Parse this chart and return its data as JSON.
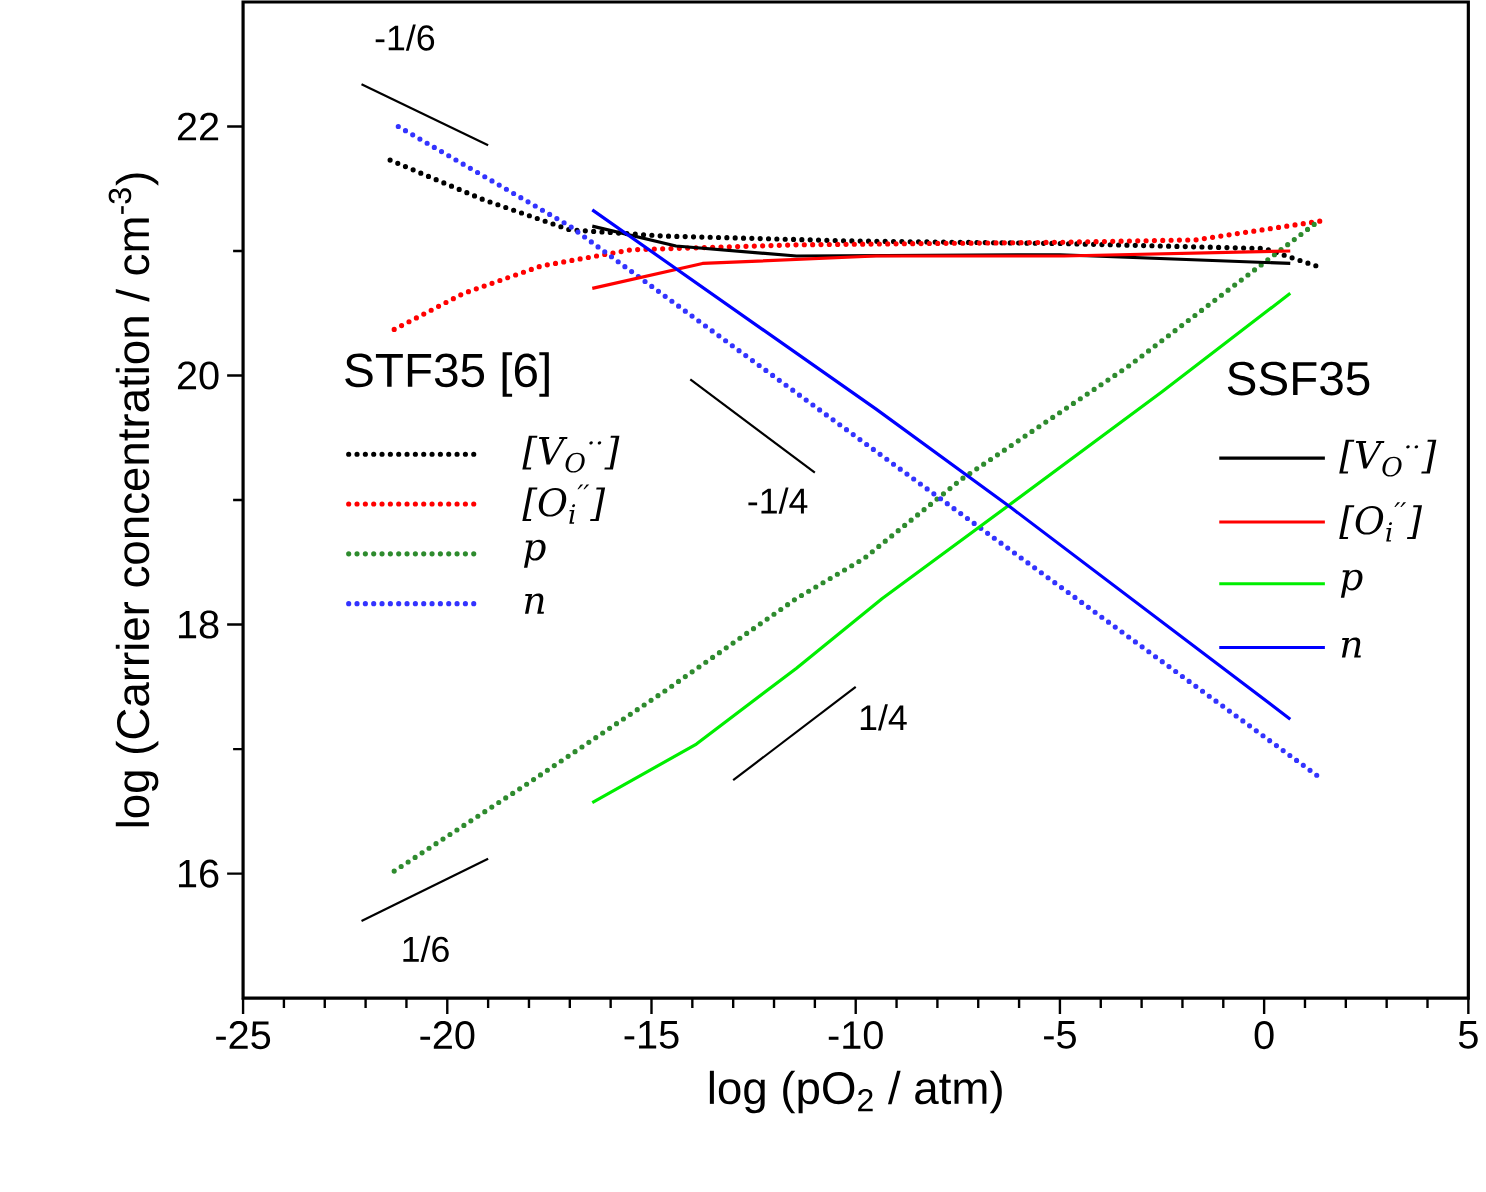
{
  "chart_data": {
    "type": "line",
    "xlabel": "log (pO$_{2}$ / atm)",
    "ylabel": "log (Carrier concentration / cm$^{-3}$)",
    "annotations": [
      "STF35 [6]",
      "SSF35"
    ],
    "xlim": [
      -25,
      5
    ],
    "ylim": [
      15,
      23
    ],
    "xticks": [
      -25,
      -20,
      -15,
      -10,
      -5,
      0,
      5
    ],
    "yticks": [
      16,
      18,
      20,
      22
    ],
    "grid": false,
    "legend": "right",
    "series": [
      {
        "name": "[V$_{O}$$^{··}$]",
        "color": "#000000",
        "line_style": "dotted",
        "x": [
          -21.4,
          -19.1,
          -17,
          -14.7,
          -10,
          -5,
          0,
          1.37
        ],
        "values": [
          21.73,
          21.41,
          21.17,
          21.12,
          21.08,
          21.06,
          21.02,
          20.87
        ]
      },
      {
        "name": "[O$_{i}$$^{′′}$]",
        "color": "#ff0000",
        "line_style": "dotted",
        "x": [
          -21.3,
          -19.6,
          -17.7,
          -15.5,
          -11.45,
          -5,
          -1.66,
          1.37
        ],
        "values": [
          20.37,
          20.66,
          20.88,
          21.01,
          21.05,
          21.07,
          21.09,
          21.24
        ]
      },
      {
        "name": "p",
        "color": "#2e8b2e",
        "line_style": "dotted",
        "x": [
          -21.3,
          -18,
          -14.7,
          -11.45,
          -9.8,
          -7.4,
          -3.3,
          1.37
        ],
        "values": [
          16.02,
          16.73,
          17.46,
          18.21,
          18.53,
          19.17,
          20.08,
          21.25
        ]
      },
      {
        "name": "n",
        "color": "#3333ff",
        "line_style": "dotted",
        "x": [
          -21.2,
          -17,
          -11.45,
          -4.6,
          1.37
        ],
        "values": [
          22.0,
          21.2,
          19.86,
          18.21,
          16.77
        ]
      },
      {
        "name": "[V$_{O}$$^{··}$]",
        "color": "#000000",
        "line_style": "solid",
        "x": [
          -16.45,
          -14.4,
          -11.45,
          -5,
          0.64
        ],
        "values": [
          21.2,
          21.04,
          20.96,
          20.97,
          20.9
        ]
      },
      {
        "name": "[O$_{i}$$^{′′}$]",
        "color": "#ff0000",
        "line_style": "solid",
        "x": [
          -16.45,
          -13.75,
          -9.5,
          -4.9,
          0.64
        ],
        "values": [
          20.7,
          20.9,
          20.96,
          20.96,
          21.0
        ]
      },
      {
        "name": "p",
        "color": "#00ee00",
        "line_style": "solid",
        "x": [
          -16.45,
          -13.9,
          -11.45,
          -9.35,
          -6.2,
          -2.5,
          0.64
        ],
        "values": [
          16.57,
          17.04,
          17.65,
          18.21,
          18.97,
          19.87,
          20.66
        ]
      },
      {
        "name": "n",
        "color": "#0000ff",
        "line_style": "solid",
        "x": [
          -16.45,
          -9.5,
          -6.2,
          0.64
        ],
        "values": [
          21.33,
          19.73,
          18.94,
          17.24
        ]
      },
      {
        "name": "-1/6",
        "color": "#000000",
        "x": [
          -22.1,
          -19.0
        ],
        "values": [
          22.34,
          21.85
        ]
      },
      {
        "name": "-1/4",
        "color": "#000000",
        "x": [
          -14.05,
          -11.0
        ],
        "values": [
          19.97,
          19.22
        ]
      },
      {
        "name": "1/4",
        "color": "#000000",
        "x": [
          -13.0,
          -10.0
        ],
        "values": [
          16.75,
          17.5
        ]
      },
      {
        "name": "1/6",
        "color": "#000000",
        "x": [
          -22.1,
          -19.0
        ],
        "values": [
          15.62,
          16.12
        ]
      }
    ]
  }
}
